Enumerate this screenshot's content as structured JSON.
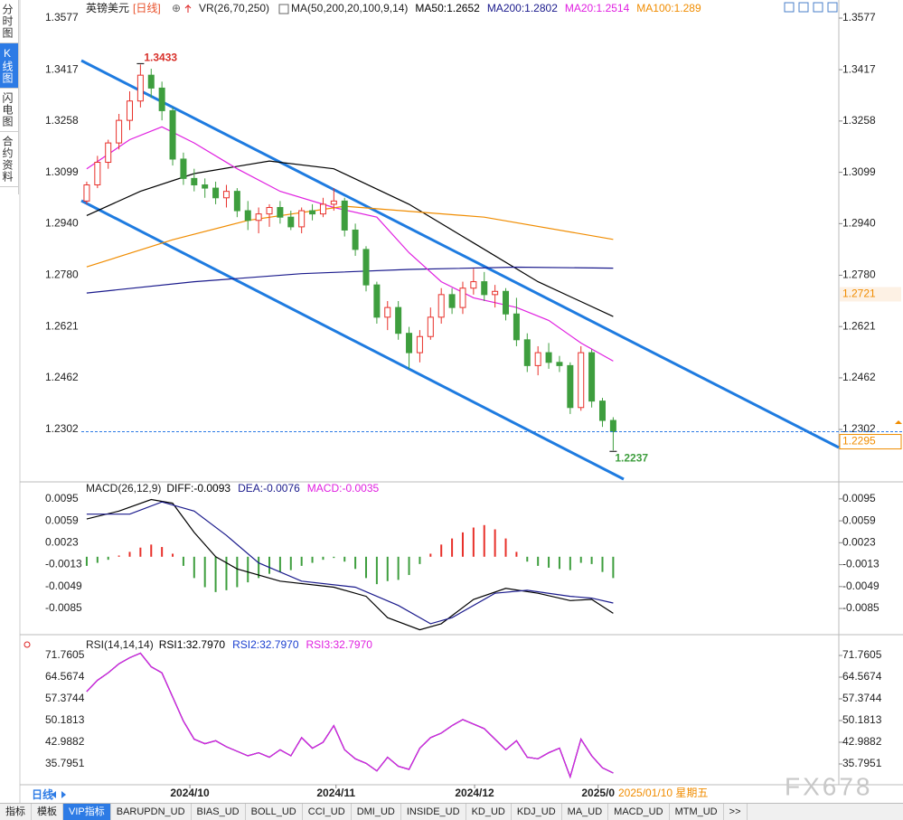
{
  "ui": {
    "sidebar": [
      "分时图",
      "K线图",
      "闪电图",
      "合约资料"
    ],
    "period": "日线",
    "date_label": "2025/01/10 星期五",
    "watermark": "FX678",
    "tabs": [
      "指标",
      "模板",
      "VIP指标",
      "BARUPDN_UD",
      "BIAS_UD",
      "BOLL_UD",
      "CCI_UD",
      "DMI_UD",
      "INSIDE_UD",
      "KD_UD",
      "KDJ_UD",
      "MA_UD",
      "MACD_UD",
      "MTM_UD",
      ">>"
    ]
  },
  "chart_data": [
    {
      "type": "candlestick",
      "title": "英镑美元",
      "subtitle": "[日线]",
      "volume_indicator": "VR(26,70,250)",
      "indicator": "MA(50,200,20,100,9,14)",
      "xlim": [
        -0.5,
        70
      ],
      "ylim": [
        1.2148,
        1.3619
      ],
      "yticks": [
        1.3577,
        1.3417,
        1.3258,
        1.3099,
        {
          "value": 1.294,
          "label": "1.2940"
        },
        {
          "value": 1.278,
          "label": "1.2780"
        },
        1.2621,
        1.2462,
        1.2302
      ],
      "grid": false,
      "up_color": "#e8302a",
      "down_color": "#3e9e3e",
      "ohlc": [
        [
          1.301,
          1.307,
          1.3,
          1.306
        ],
        [
          1.306,
          1.315,
          1.305,
          1.313
        ],
        [
          1.313,
          1.32,
          1.311,
          1.319
        ],
        [
          1.319,
          1.328,
          1.317,
          1.326
        ],
        [
          1.326,
          1.335,
          1.323,
          1.332
        ],
        [
          1.332,
          1.3433,
          1.33,
          1.34
        ],
        [
          1.34,
          1.342,
          1.333,
          1.336
        ],
        [
          1.336,
          1.338,
          1.326,
          1.329
        ],
        [
          1.329,
          1.33,
          1.312,
          1.314
        ],
        [
          1.314,
          1.316,
          1.306,
          1.308
        ],
        [
          1.308,
          1.311,
          1.304,
          1.306
        ],
        [
          1.306,
          1.308,
          1.302,
          1.305
        ],
        [
          1.305,
          1.307,
          1.3,
          1.302
        ],
        [
          1.302,
          1.306,
          1.299,
          1.304
        ],
        [
          1.304,
          1.305,
          1.296,
          1.298
        ],
        [
          1.298,
          1.301,
          1.292,
          1.295
        ],
        [
          1.295,
          1.299,
          1.291,
          1.297
        ],
        [
          1.297,
          1.3,
          1.293,
          1.299
        ],
        [
          1.299,
          1.301,
          1.294,
          1.296
        ],
        [
          1.296,
          1.298,
          1.292,
          1.293
        ],
        [
          1.293,
          1.299,
          1.291,
          1.298
        ],
        [
          1.298,
          1.3,
          1.295,
          1.297
        ],
        [
          1.297,
          1.302,
          1.296,
          1.3
        ],
        [
          1.3,
          1.305,
          1.298,
          1.301
        ],
        [
          1.301,
          1.302,
          1.29,
          1.292
        ],
        [
          1.292,
          1.294,
          1.284,
          1.286
        ],
        [
          1.286,
          1.287,
          1.273,
          1.275
        ],
        [
          1.275,
          1.276,
          1.263,
          1.265
        ],
        [
          1.265,
          1.27,
          1.261,
          1.268
        ],
        [
          1.268,
          1.27,
          1.258,
          1.26
        ],
        [
          1.26,
          1.262,
          1.249,
          1.254
        ],
        [
          1.254,
          1.261,
          1.251,
          1.259
        ],
        [
          1.259,
          1.268,
          1.258,
          1.265
        ],
        [
          1.265,
          1.274,
          1.263,
          1.272
        ],
        [
          1.272,
          1.274,
          1.266,
          1.268
        ],
        [
          1.268,
          1.276,
          1.266,
          1.274
        ],
        [
          1.274,
          1.28,
          1.272,
          1.276
        ],
        [
          1.276,
          1.279,
          1.27,
          1.272
        ],
        [
          1.272,
          1.275,
          1.268,
          1.273
        ],
        [
          1.273,
          1.274,
          1.264,
          1.266
        ],
        [
          1.266,
          1.271,
          1.256,
          1.258
        ],
        [
          1.258,
          1.26,
          1.248,
          1.25
        ],
        [
          1.25,
          1.256,
          1.247,
          1.254
        ],
        [
          1.254,
          1.257,
          1.249,
          1.251
        ],
        [
          1.251,
          1.253,
          1.248,
          1.25
        ],
        [
          1.25,
          1.251,
          1.235,
          1.237
        ],
        [
          1.237,
          1.256,
          1.236,
          1.254
        ],
        [
          1.254,
          1.255,
          1.237,
          1.239
        ],
        [
          1.239,
          1.24,
          1.231,
          1.233
        ],
        [
          1.233,
          1.234,
          1.2237,
          1.2295
        ]
      ],
      "series": [
        {
          "name": "MA50:1.2652",
          "color": "#000000",
          "x": [
            0,
            5,
            10,
            17,
            23,
            30,
            36,
            42,
            49
          ],
          "values": [
            1.2965,
            1.304,
            1.3095,
            1.3134,
            1.311,
            1.3,
            1.288,
            1.276,
            1.2652
          ]
        },
        {
          "name": "MA200:1.2802",
          "color": "#1a1a8c",
          "x": [
            0,
            10,
            20,
            30,
            40,
            49
          ],
          "values": [
            1.2725,
            1.276,
            1.2785,
            1.2798,
            1.2805,
            1.2802
          ]
        },
        {
          "name": "MA20:1.2514",
          "color": "#e020e0",
          "x": [
            0,
            4,
            7,
            10,
            14,
            18,
            23,
            27,
            30,
            33,
            36,
            40,
            43,
            46,
            49
          ],
          "values": [
            1.311,
            1.32,
            1.324,
            1.319,
            1.311,
            1.304,
            1.299,
            1.296,
            1.285,
            1.276,
            1.271,
            1.268,
            1.264,
            1.257,
            1.2514
          ]
        },
        {
          "name": "MA100:1.289",
          "color": "#f08c00",
          "x": [
            0,
            8,
            15,
            24,
            37,
            49
          ],
          "values": [
            1.2806,
            1.289,
            1.295,
            1.2994,
            1.296,
            1.2891
          ]
        }
      ],
      "last_price": 1.2295,
      "price_marker": 1.2721
    },
    {
      "type": "macd",
      "title": "MACD(26,12,9)",
      "name": "MACD:-0.0035",
      "name_color": "#e020e0",
      "xlim": [
        -0.5,
        70
      ],
      "ylim": [
        -0.0125,
        0.012
      ],
      "yticks": [
        0.0095,
        0.0059,
        0.0023,
        -0.0013,
        -0.0049,
        -0.0085
      ],
      "grid": false,
      "up_color": "#e8302a",
      "down_color": "#3e9e3e",
      "values": [
        -0.0015,
        -0.001,
        -0.0005,
        0.0002,
        0.0008,
        0.0015,
        0.002,
        0.0016,
        0.0005,
        -0.0015,
        -0.0035,
        -0.005,
        -0.0058,
        -0.0055,
        -0.005,
        -0.0042,
        -0.0035,
        -0.0028,
        -0.0025,
        -0.0022,
        -0.0015,
        -0.001,
        -0.0005,
        -0.0002,
        -0.0008,
        -0.002,
        -0.0035,
        -0.0045,
        -0.004,
        -0.0038,
        -0.003,
        -0.0012,
        0.0005,
        0.002,
        0.003,
        0.004,
        0.0048,
        0.0052,
        0.0045,
        0.003,
        0.0008,
        -0.0008,
        -0.0015,
        -0.0018,
        -0.002,
        -0.0022,
        -0.001,
        -0.0012,
        -0.0025,
        -0.0035
      ],
      "series": [
        {
          "name": "DIFF:-0.0093",
          "color": "#000000",
          "x": [
            0,
            3,
            6,
            8,
            10,
            12,
            14,
            18,
            23,
            26,
            28,
            31,
            33,
            36,
            39,
            42,
            45,
            47,
            49
          ],
          "values": [
            0.0062,
            0.0075,
            0.0094,
            0.0088,
            0.004,
            0,
            -0.002,
            -0.004,
            -0.005,
            -0.0065,
            -0.01,
            -0.012,
            -0.011,
            -0.007,
            -0.0052,
            -0.006,
            -0.0072,
            -0.007,
            -0.0093
          ]
        },
        {
          "name": "DEA:-0.0076",
          "color": "#1a1a8c",
          "x": [
            0,
            4,
            7,
            10,
            13,
            16,
            20,
            25,
            29,
            32,
            34,
            38,
            41,
            45,
            47,
            49
          ],
          "values": [
            0.007,
            0.007,
            0.009,
            0.0075,
            0.0035,
            -0.001,
            -0.004,
            -0.005,
            -0.008,
            -0.011,
            -0.01,
            -0.006,
            -0.0055,
            -0.0065,
            -0.0068,
            -0.0076
          ]
        }
      ]
    },
    {
      "type": "line",
      "title": "RSI(14,14,14)",
      "xlim": [
        -0.5,
        70
      ],
      "ylim": [
        28.9,
        77.75
      ],
      "yticks": [
        71.7605,
        64.5674,
        57.3744,
        50.1813,
        42.9882,
        35.7951
      ],
      "grid": false,
      "xticks": [
        {
          "value": 9.6,
          "label": "2024/10"
        },
        {
          "value": 23.2,
          "label": "2024/11"
        },
        {
          "value": 36.1,
          "label": "2024/12"
        },
        {
          "value": 47.6,
          "label": "2025/0"
        }
      ],
      "series": [
        {
          "name": "RSI1:32.7970",
          "color": "#000000",
          "values": [
            59.8,
            63.5,
            66,
            69,
            71,
            72.5,
            68,
            66,
            58,
            50,
            44,
            42.5,
            43.5,
            41.5,
            40,
            38.5,
            39.5,
            38,
            40.5,
            38.5,
            44.5,
            41,
            43,
            48.5,
            40.5,
            37.5,
            36,
            33.5,
            38,
            35,
            34,
            41,
            44.5,
            46,
            48.5,
            50.5,
            49,
            47.5,
            44,
            40.5,
            43.5,
            38,
            37.5,
            39.5,
            41,
            31.5,
            44,
            38.5,
            34.5,
            32.797
          ]
        },
        {
          "name": "RSI2:32.7970",
          "color": "#1a3fd0",
          "values": [
            59.8,
            63.5,
            66,
            69,
            71,
            72.5,
            68,
            66,
            58,
            50,
            44,
            42.5,
            43.5,
            41.5,
            40,
            38.5,
            39.5,
            38,
            40.5,
            38.5,
            44.5,
            41,
            43,
            48.5,
            40.5,
            37.5,
            36,
            33.5,
            38,
            35,
            34,
            41,
            44.5,
            46,
            48.5,
            50.5,
            49,
            47.5,
            44,
            40.5,
            43.5,
            38,
            37.5,
            39.5,
            41,
            31.5,
            44,
            38.5,
            34.5,
            32.797
          ]
        },
        {
          "name": "RSI3:32.7970",
          "color": "#e020e0",
          "values": [
            59.8,
            63.5,
            66,
            69,
            71,
            72.5,
            68,
            66,
            58,
            50,
            44,
            42.5,
            43.5,
            41.5,
            40,
            38.5,
            39.5,
            38,
            40.5,
            38.5,
            44.5,
            41,
            43,
            48.5,
            40.5,
            37.5,
            36,
            33.5,
            38,
            35,
            34,
            41,
            44.5,
            46,
            48.5,
            50.5,
            49,
            47.5,
            44,
            40.5,
            43.5,
            38,
            37.5,
            39.5,
            41,
            31.5,
            44,
            38.5,
            34.5,
            32.797
          ]
        }
      ]
    }
  ]
}
